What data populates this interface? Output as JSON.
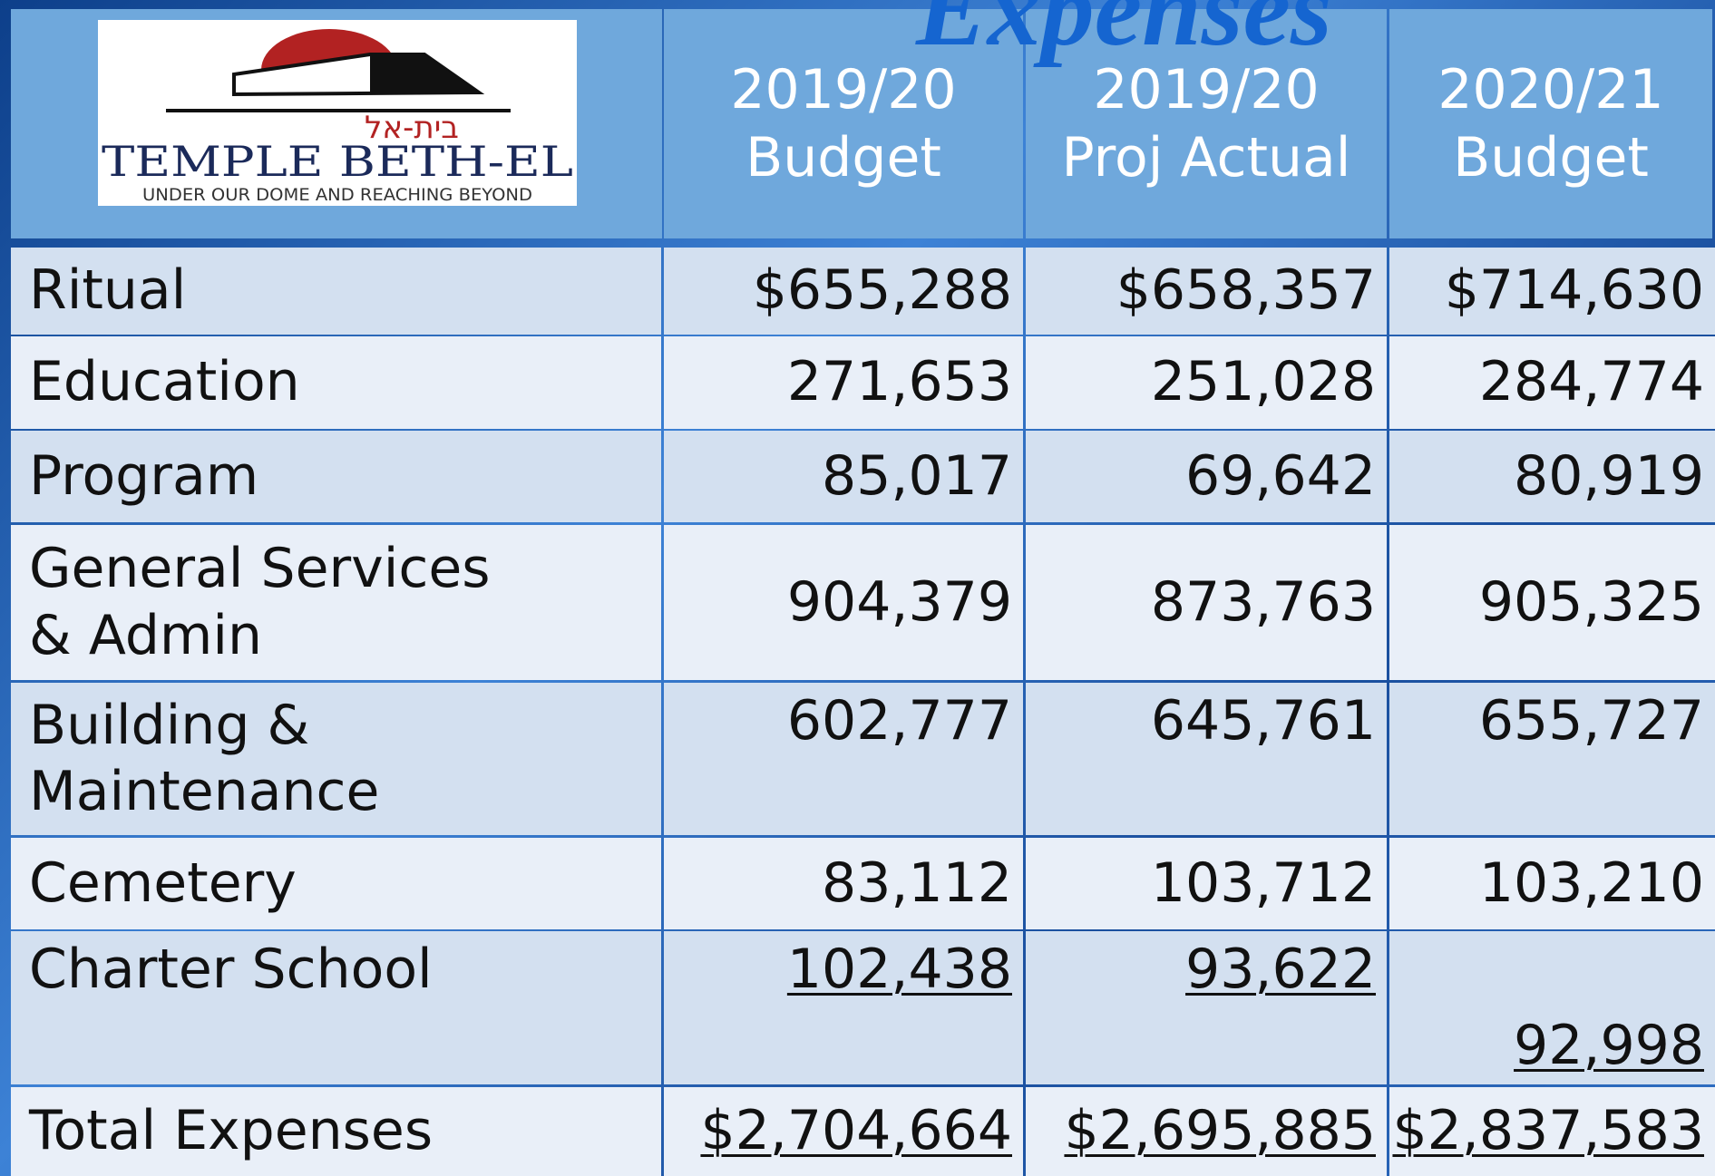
{
  "title": "Expenses",
  "logo": {
    "hebrew": "בית-אל",
    "name": "TEMPLE BETH-EL",
    "tagline": "UNDER OUR DOME AND REACHING BEYOND"
  },
  "table": {
    "columns": [
      {
        "year": "2019/20",
        "label": "Budget"
      },
      {
        "year": "2019/20",
        "label": "Proj Actual"
      },
      {
        "year": "2020/21",
        "label": "Budget"
      }
    ],
    "rows": [
      [
        "Ritual",
        "$655,288",
        "$658,357",
        "$714,630"
      ],
      [
        "Education",
        "271,653",
        "251,028",
        "284,774"
      ],
      [
        "Program",
        "85,017",
        "69,642",
        "80,919"
      ],
      [
        "General Services & Admin",
        "904,379",
        "873,763",
        "905,325"
      ],
      [
        "Building & Maintenance",
        "602,777",
        "645,761",
        "655,727"
      ],
      [
        "Cemetery",
        "83,112",
        "103,712",
        "103,210"
      ],
      [
        "Charter School",
        "102,438",
        "93,622",
        "92,998"
      ],
      [
        "Total Expenses",
        "$2,704,664",
        "$2,695,885",
        "$2,837,583"
      ]
    ]
  }
}
